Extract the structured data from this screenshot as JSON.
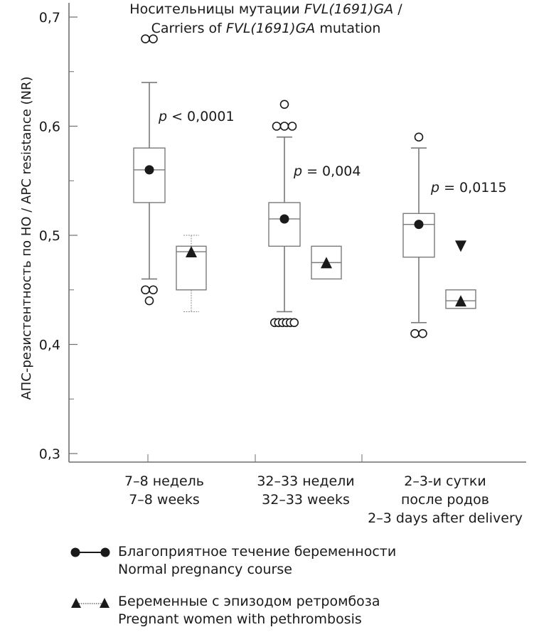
{
  "chart_data": {
    "type": "boxplot",
    "title_line1_prefix": "Носительницы мутации ",
    "title_line1_italic": "FVL(1691)GA",
    "title_line1_suffix": " /",
    "title_line2_prefix": "Carriers of ",
    "title_line2_italic": "FVL(1691)GA",
    "title_line2_suffix": " mutation",
    "ylabel": "АПС-резистентность по НО / APC resistance (NR)",
    "ylim": [
      0.3,
      0.7
    ],
    "yticks": [
      0.3,
      0.4,
      0.5,
      0.6,
      0.7
    ],
    "ytick_labels": [
      "0,3",
      "0,4",
      "0,5",
      "0,6",
      "0,7"
    ],
    "yminor": [
      0.35,
      0.45,
      0.55,
      0.65
    ],
    "categories": [
      {
        "lines": [
          "7–8 недель",
          "7–8 weeks"
        ]
      },
      {
        "lines": [
          "32–33 недели",
          "32–33 weeks"
        ]
      },
      {
        "lines": [
          "2–3-и сутки",
          "после родов",
          "2–3 days after delivery"
        ]
      }
    ],
    "p_values": [
      {
        "p": "p",
        "rest": " < 0,0001"
      },
      {
        "p": "p",
        "rest": " = 0,004"
      },
      {
        "p": "p",
        "rest": " = 0,0115"
      }
    ],
    "series": [
      {
        "name": "Благоприятное течение беременности / Normal pregnancy course",
        "marker": "circle",
        "boxes": [
          {
            "whisker_low": 0.46,
            "q1": 0.53,
            "median": 0.56,
            "q3": 0.58,
            "whisker_high": 0.64,
            "mean": 0.56,
            "outliers": [
              0.68,
              0.68,
              0.45,
              0.45,
              0.44
            ]
          },
          {
            "whisker_low": 0.43,
            "q1": 0.49,
            "median": 0.515,
            "q3": 0.53,
            "whisker_high": 0.59,
            "mean": 0.515,
            "outliers": [
              0.62,
              0.6,
              0.6,
              0.6,
              0.42,
              0.42,
              0.42,
              0.42,
              0.42,
              0.42
            ]
          },
          {
            "whisker_low": 0.42,
            "q1": 0.48,
            "median": 0.51,
            "q3": 0.52,
            "whisker_high": 0.58,
            "mean": 0.51,
            "outliers": [
              0.59,
              0.41,
              0.41
            ]
          }
        ]
      },
      {
        "name": "Беременные с эпизодом ретромбоза / Pregnant women with pethrombosis",
        "marker": "triangle",
        "boxes": [
          {
            "whisker_low": 0.43,
            "q1": 0.45,
            "median": 0.485,
            "q3": 0.49,
            "whisker_high": 0.5,
            "mean": 0.485,
            "outliers": []
          },
          {
            "whisker_low": 0.46,
            "q1": 0.46,
            "median": 0.475,
            "q3": 0.49,
            "whisker_high": 0.49,
            "mean": 0.475,
            "outliers": []
          },
          {
            "whisker_low": 0.433,
            "q1": 0.433,
            "median": 0.44,
            "q3": 0.45,
            "whisker_high": 0.45,
            "mean": 0.44,
            "extra_down_triangle": 0.49,
            "outliers": []
          }
        ]
      }
    ],
    "legend": [
      {
        "line1": "Благоприятное течение беременности",
        "line2": "Normal pregnancy course",
        "marker": "circle",
        "line": "solid"
      },
      {
        "line1": "Беременные с эпизодом ретромбоза",
        "line2": "Pregnant women with pethrombosis",
        "marker": "triangle",
        "line": "dotted"
      }
    ],
    "colors": {
      "axis": "#6e6e6e",
      "box": "#7a7a7a",
      "marker": "#1a1a1a",
      "text": "#1a1a1a"
    }
  }
}
